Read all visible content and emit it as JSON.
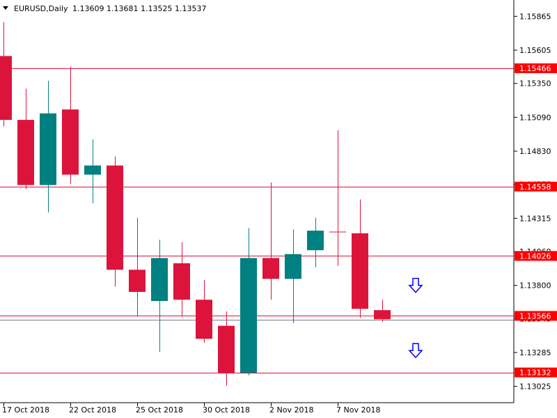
{
  "chart_header": {
    "symbol": "EURUSD,Daily",
    "ohlc": "1.13609 1.13681 1.13525 1.13537"
  },
  "colors": {
    "bull": "#008080",
    "bear": "#DC143C",
    "hline": "#DC143C",
    "label_bg": "#FF0000",
    "frame": "#000000",
    "arrow": "#0000FF",
    "bid_line": "#708090"
  },
  "chart_data": {
    "type": "candlestick",
    "title": "EURUSD,Daily  1.13609 1.13681 1.13525 1.13537",
    "ylim": [
      1.129,
      1.1599
    ],
    "yticks": [
      "1.15865",
      "1.15605",
      "1.15350",
      "1.15090",
      "1.14830",
      "1.14575",
      "1.14315",
      "1.14060",
      "1.13800",
      "1.13545",
      "1.13285",
      "1.13025"
    ],
    "xtick_labels": [
      {
        "label": "17 Oct 2018",
        "index": 0
      },
      {
        "label": "22 Oct 2018",
        "index": 3
      },
      {
        "label": "25 Oct 2018",
        "index": 6
      },
      {
        "label": "30 Oct 2018",
        "index": 9
      },
      {
        "label": "2 Nov 2018",
        "index": 12
      },
      {
        "label": "7 Nov 2018",
        "index": 15
      }
    ],
    "candles": [
      {
        "open": 1.1556,
        "high": 1.1582,
        "low": 1.1502,
        "close": 1.1507
      },
      {
        "open": 1.1507,
        "high": 1.1531,
        "low": 1.1454,
        "close": 1.1457
      },
      {
        "open": 1.1457,
        "high": 1.1537,
        "low": 1.1436,
        "close": 1.1512
      },
      {
        "open": 1.1515,
        "high": 1.1548,
        "low": 1.1458,
        "close": 1.1465
      },
      {
        "open": 1.1465,
        "high": 1.1492,
        "low": 1.1443,
        "close": 1.1472
      },
      {
        "open": 1.1472,
        "high": 1.1479,
        "low": 1.1379,
        "close": 1.1392
      },
      {
        "open": 1.1392,
        "high": 1.1432,
        "low": 1.1356,
        "close": 1.1375
      },
      {
        "open": 1.1368,
        "high": 1.1415,
        "low": 1.1329,
        "close": 1.1401
      },
      {
        "open": 1.1397,
        "high": 1.1413,
        "low": 1.1356,
        "close": 1.1369
      },
      {
        "open": 1.1369,
        "high": 1.1384,
        "low": 1.1336,
        "close": 1.1339
      },
      {
        "open": 1.1349,
        "high": 1.136,
        "low": 1.1303,
        "close": 1.1313
      },
      {
        "open": 1.1313,
        "high": 1.1424,
        "low": 1.1311,
        "close": 1.1401
      },
      {
        "open": 1.1401,
        "high": 1.1459,
        "low": 1.1369,
        "close": 1.1385
      },
      {
        "open": 1.1385,
        "high": 1.1423,
        "low": 1.1351,
        "close": 1.1404
      },
      {
        "open": 1.1407,
        "high": 1.1432,
        "low": 1.1394,
        "close": 1.1422
      },
      {
        "open": 1.1421,
        "high": 1.1499,
        "low": 1.1395,
        "close": 1.1421
      },
      {
        "open": 1.142,
        "high": 1.1446,
        "low": 1.1355,
        "close": 1.1362
      },
      {
        "open": 1.1361,
        "high": 1.1369,
        "low": 1.1352,
        "close": 1.1354
      }
    ],
    "horizontal_levels": [
      {
        "value": 1.15466,
        "label": "1.15466"
      },
      {
        "value": 1.14558,
        "label": "1.14558"
      },
      {
        "value": 1.14026,
        "label": "1.14026"
      },
      {
        "value": 1.13566,
        "label": "1.13566"
      },
      {
        "value": 1.13132,
        "label": "1.13132"
      }
    ],
    "bid_line": 1.13537,
    "annotations": [
      {
        "type": "arrow-down",
        "index": 18.5,
        "price": 1.138
      },
      {
        "type": "arrow-down",
        "index": 18.5,
        "price": 1.133
      }
    ]
  }
}
